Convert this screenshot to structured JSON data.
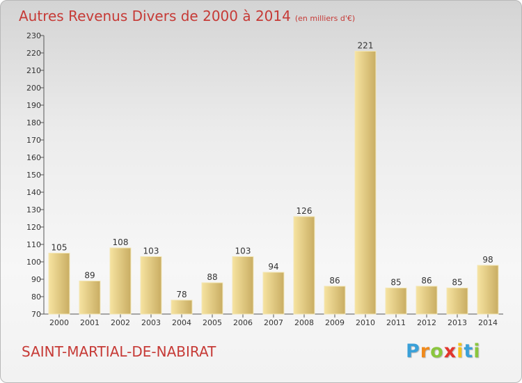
{
  "header": {
    "title": "Autres Revenus Divers de 2000 à 2014",
    "unit": "(en milliers d'€)"
  },
  "footer": {
    "commune": "SAINT-MARTIAL-DE-NABIRAT",
    "logo_letters": [
      "P",
      "r",
      "o",
      "x",
      "i",
      "t",
      "i"
    ],
    "logo_colors": [
      "#3aa0d8",
      "#f08a1c",
      "#8bc63e",
      "#e2352c",
      "#f4c21a",
      "#3aa0d8",
      "#8bc63e"
    ]
  },
  "colors": {
    "title": "#c63a36",
    "bar_light": "#f6e3a0",
    "bar_dark": "#c9ad63",
    "axis": "#555555"
  },
  "chart_data": {
    "type": "bar",
    "categories": [
      "2000",
      "2001",
      "2002",
      "2003",
      "2004",
      "2005",
      "2006",
      "2007",
      "2008",
      "2009",
      "2010",
      "2011",
      "2012",
      "2013",
      "2014"
    ],
    "values": [
      105,
      89,
      108,
      103,
      78,
      88,
      103,
      94,
      126,
      86,
      221,
      85,
      86,
      85,
      98
    ],
    "title": "Autres Revenus Divers de 2000 à 2014",
    "ylim": [
      70,
      230
    ],
    "yticks": [
      70,
      80,
      90,
      100,
      110,
      120,
      130,
      140,
      150,
      160,
      170,
      180,
      190,
      200,
      210,
      220,
      230
    ],
    "data_labels": true,
    "grid": false
  }
}
